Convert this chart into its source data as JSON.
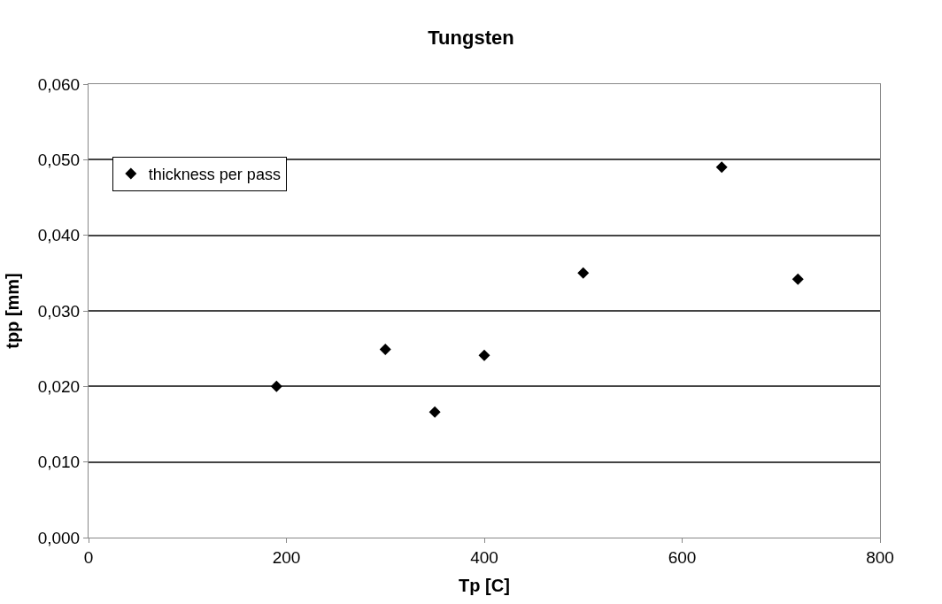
{
  "chart_data": {
    "type": "scatter",
    "title": "Tungsten",
    "xlabel": "Tp [C]",
    "ylabel": "tpp [mm]",
    "x": [
      190,
      300,
      350,
      400,
      500,
      640,
      717
    ],
    "series": [
      {
        "name": "thickness per pass",
        "color": "#000000",
        "values": [
          0.02,
          0.0249,
          0.0166,
          0.0241,
          0.035,
          0.049,
          0.0342
        ]
      }
    ],
    "xlim": [
      0,
      800
    ],
    "xticks": [
      0,
      200,
      400,
      600,
      800
    ],
    "ylim": [
      0,
      0.06
    ],
    "yticks": [
      {
        "value": 0,
        "label": "0,000"
      },
      {
        "value": 0.01,
        "label": "0,010"
      },
      {
        "value": 0.02,
        "label": "0,020"
      },
      {
        "value": 0.03,
        "label": "0,030"
      },
      {
        "value": 0.04,
        "label": "0,040"
      },
      {
        "value": 0.05,
        "label": "0,050"
      },
      {
        "value": 0.06,
        "label": "0,060"
      }
    ],
    "grid": "y",
    "legend": "top left",
    "marker": "diamond"
  }
}
